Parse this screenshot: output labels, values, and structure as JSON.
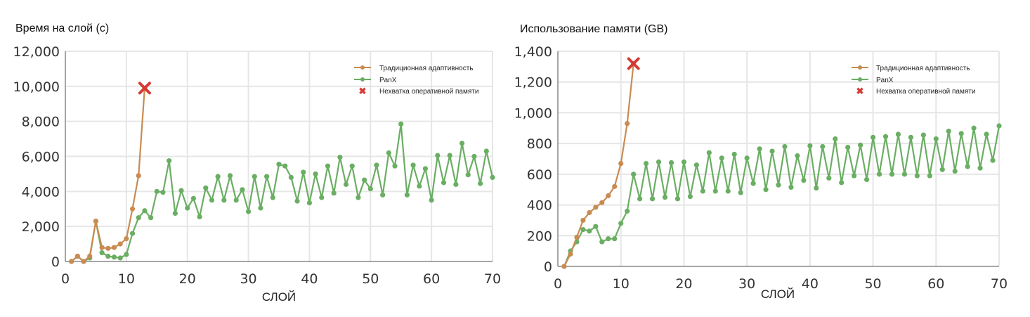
{
  "colors": {
    "traditional": "#c98b52",
    "panx": "#6aae63",
    "oom": "#d33b34",
    "grid": "#e6e6e6",
    "axis": "#888888"
  },
  "chart_data": [
    {
      "type": "line",
      "title": "Время на слой (с)",
      "xlabel": "СЛОЙ",
      "ylabel": "",
      "xlim": [
        0,
        70
      ],
      "ylim": [
        0,
        12000
      ],
      "xticks": [
        "0",
        "10",
        "20",
        "30",
        "40",
        "50",
        "60",
        "70"
      ],
      "yticks": [
        "0",
        "2,000",
        "4,000",
        "6,000",
        "8,000",
        "10,000",
        "12,000"
      ],
      "grid": true,
      "legend_position": "top-right",
      "legend": [
        "Традиционная адаптивность",
        "PanX",
        "Нехватка оперативной памяти"
      ],
      "series": [
        {
          "name": "Традиционная адаптивность",
          "x": [
            1,
            2,
            3,
            4,
            5,
            6,
            7,
            8,
            9,
            10,
            11,
            12,
            13
          ],
          "y": [
            0,
            300,
            0,
            300,
            2300,
            800,
            750,
            800,
            1000,
            1300,
            3000,
            4900,
            9900
          ]
        },
        {
          "name": "PanX",
          "x": [
            1,
            2,
            3,
            4,
            5,
            6,
            7,
            8,
            9,
            10,
            11,
            12,
            13,
            14,
            15,
            16,
            17,
            18,
            19,
            20,
            21,
            22,
            23,
            24,
            25,
            26,
            27,
            28,
            29,
            30,
            31,
            32,
            33,
            34,
            35,
            36,
            37,
            38,
            39,
            40,
            41,
            42,
            43,
            44,
            45,
            46,
            47,
            48,
            49,
            50,
            51,
            52,
            53,
            54,
            55,
            56,
            57,
            58,
            59,
            60,
            61,
            62,
            63,
            64,
            65,
            66,
            67,
            68,
            69,
            70
          ],
          "y": [
            0,
            300,
            0,
            200,
            2300,
            500,
            300,
            250,
            200,
            400,
            1600,
            2500,
            2900,
            2500,
            4000,
            3950,
            5750,
            2750,
            4050,
            3050,
            3600,
            2550,
            4200,
            3500,
            4850,
            3500,
            4900,
            3500,
            4100,
            2850,
            4850,
            3050,
            4850,
            3650,
            5550,
            5450,
            4800,
            3450,
            5100,
            3350,
            5000,
            3650,
            5450,
            3900,
            5950,
            4400,
            5450,
            3650,
            4650,
            4150,
            5500,
            3800,
            6200,
            5450,
            7850,
            3800,
            5500,
            4300,
            5300,
            3500,
            6050,
            4500,
            6050,
            4400,
            6750,
            4950,
            6000,
            4450,
            6300,
            4800
          ]
        }
      ],
      "oom_point": {
        "x": 13,
        "y": 9900
      }
    },
    {
      "type": "line",
      "title": "Использование памяти (GB)",
      "xlabel": "СЛОЙ",
      "ylabel": "",
      "xlim": [
        0,
        70
      ],
      "ylim": [
        0,
        1400
      ],
      "xticks": [
        "0",
        "10",
        "20",
        "30",
        "40",
        "50",
        "60",
        "70"
      ],
      "yticks": [
        "0",
        "200",
        "400",
        "600",
        "800",
        "1,000",
        "1,200",
        "1,400"
      ],
      "grid": true,
      "legend_position": "top-right",
      "legend": [
        "Традиционная адаптивность",
        "PanX",
        "Нехватка оперативной памяти"
      ],
      "series": [
        {
          "name": "Традиционная адаптивность",
          "x": [
            1,
            2,
            3,
            4,
            5,
            6,
            7,
            8,
            9,
            10,
            11,
            12
          ],
          "y": [
            0,
            80,
            190,
            300,
            350,
            385,
            415,
            460,
            520,
            670,
            930,
            1320
          ]
        },
        {
          "name": "PanX",
          "x": [
            1,
            2,
            3,
            4,
            5,
            6,
            7,
            8,
            9,
            10,
            11,
            12,
            13,
            14,
            15,
            16,
            17,
            18,
            19,
            20,
            21,
            22,
            23,
            24,
            25,
            26,
            27,
            28,
            29,
            30,
            31,
            32,
            33,
            34,
            35,
            36,
            37,
            38,
            39,
            40,
            41,
            42,
            43,
            44,
            45,
            46,
            47,
            48,
            49,
            50,
            51,
            52,
            53,
            54,
            55,
            56,
            57,
            58,
            59,
            60,
            61,
            62,
            63,
            64,
            65,
            66,
            67,
            68,
            69,
            70
          ],
          "y": [
            0,
            100,
            160,
            240,
            230,
            260,
            160,
            180,
            180,
            280,
            360,
            600,
            440,
            670,
            440,
            680,
            450,
            675,
            440,
            680,
            455,
            660,
            490,
            740,
            490,
            705,
            490,
            730,
            480,
            705,
            540,
            765,
            500,
            750,
            530,
            780,
            515,
            720,
            560,
            785,
            510,
            780,
            575,
            830,
            545,
            775,
            590,
            790,
            565,
            840,
            600,
            845,
            600,
            860,
            600,
            840,
            590,
            855,
            590,
            830,
            630,
            880,
            620,
            865,
            650,
            900,
            640,
            860,
            690,
            915
          ]
        }
      ],
      "oom_point": {
        "x": 12,
        "y": 1320
      }
    }
  ]
}
